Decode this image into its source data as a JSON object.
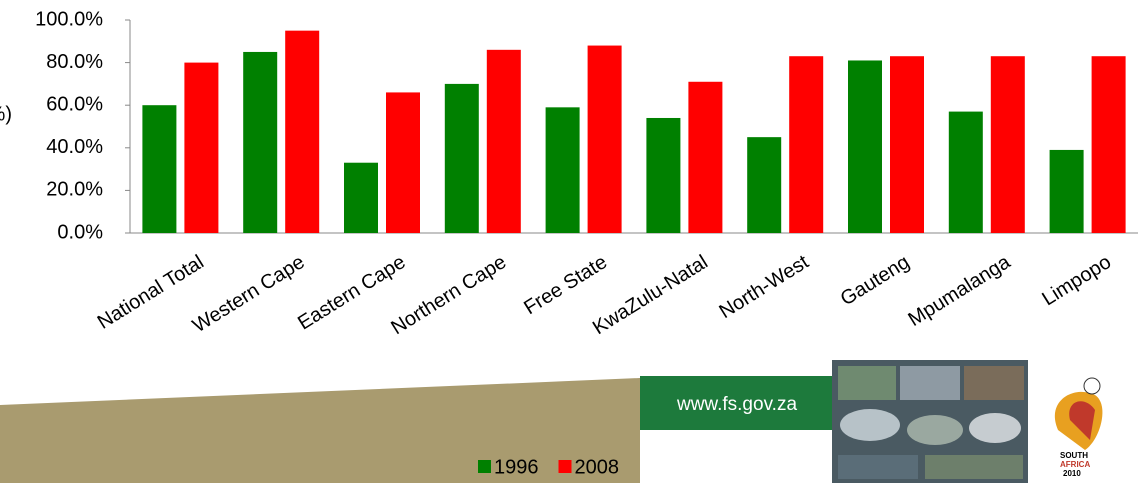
{
  "chart_data": {
    "type": "bar",
    "y_label": "(%)",
    "categories": [
      "National Total",
      "Western Cape",
      "Eastern Cape",
      "Northern Cape",
      "Free State",
      "KwaZulu-Natal",
      "North-West",
      "Gauteng",
      "Mpumalanga",
      "Limpopo"
    ],
    "series": [
      {
        "name": "1996",
        "color": "#008000",
        "values": [
          60,
          85,
          33,
          70,
          59,
          54,
          45,
          81,
          57,
          39
        ]
      },
      {
        "name": "2008",
        "color": "#ff0000",
        "values": [
          80,
          95,
          66,
          86,
          88,
          71,
          83,
          83,
          83,
          83
        ]
      }
    ],
    "ylim": [
      0,
      100
    ],
    "yticks": [
      {
        "value": 0,
        "label": "0.0%"
      },
      {
        "value": 20,
        "label": "20.0%"
      },
      {
        "value": 40,
        "label": "40.0%"
      },
      {
        "value": 60,
        "label": "60.0%"
      },
      {
        "value": 80,
        "label": "80.0%"
      },
      {
        "value": 100,
        "label": "100.0%"
      }
    ],
    "grid": false,
    "legend": "bottom"
  },
  "banner": {
    "url": "www.fs.gov.za"
  },
  "logo": {
    "lines": [
      "SOUTH",
      "AFRICA",
      "2010"
    ]
  }
}
